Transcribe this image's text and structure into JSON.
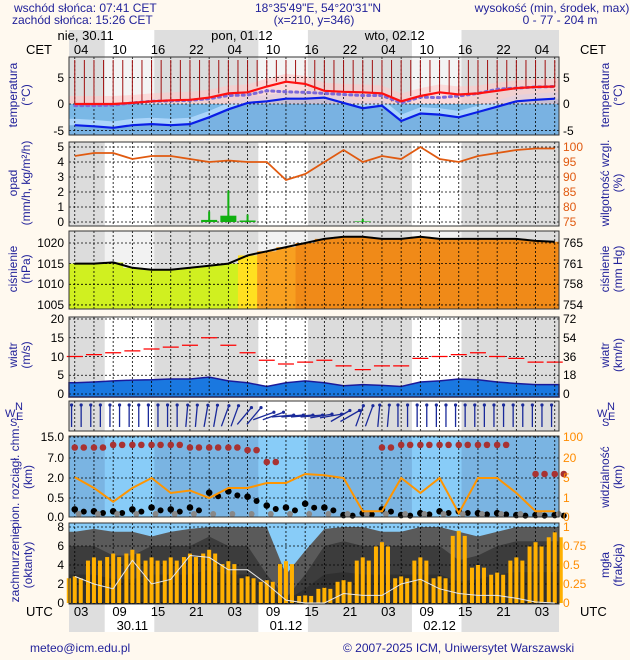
{
  "header": {
    "sunrise": "wschód słońca: 07:41 CET",
    "sunset": "zachód słońca: 15:26 CET",
    "coords": "18°35'49\"E, 54°20'31\"N",
    "grid": "(x=210,  y=346)",
    "elevation_label": "wysokość (min, środek, max)",
    "elevation_value": "0 - 77 - 204 m"
  },
  "top_axis": {
    "tz": "CET",
    "days": [
      "nie, 30.11",
      "pon, 01.12",
      "wto, 02.12"
    ],
    "hours": [
      "04",
      "10",
      "16",
      "22",
      "04",
      "10",
      "16",
      "22",
      "04",
      "10",
      "16",
      "22",
      "04"
    ]
  },
  "bottom_axis": {
    "tz": "UTC",
    "hours": [
      "03",
      "09",
      "15",
      "21",
      "03",
      "09",
      "15",
      "21",
      "03",
      "09",
      "15",
      "21",
      "03"
    ],
    "dates": [
      "30.11",
      "01.12",
      "02.12"
    ]
  },
  "footer": {
    "email": "meteo@icm.edu.pl",
    "copyright": "© 2007-2025 ICM, Uniwersytet Warszawski"
  },
  "colors": {
    "text": "#22229a",
    "temp": "#ff1010",
    "dew": "#0a1ee6",
    "humidity": "#e05a10",
    "precip": "#10b010",
    "gust": "#ff0000",
    "wind": "#1a78e0",
    "visibility": "#ff9500",
    "fog": "#ffb000",
    "night": "#dedede",
    "day": "#ffffff"
  },
  "chart_data": [
    {
      "type": "line",
      "id": "temperature",
      "title_left": [
        "temperatura",
        "(°C)"
      ],
      "title_right": [
        "temperatura",
        "(°C)"
      ],
      "x_hours_cet": [
        3,
        6,
        9,
        12,
        15,
        18,
        21,
        24,
        27,
        30,
        33,
        36,
        39,
        42,
        45,
        48,
        51,
        54,
        57,
        60,
        63,
        66,
        69,
        72,
        75,
        78
      ],
      "yticks_left": [
        "5",
        "0",
        "-5"
      ],
      "yticks_right": [
        "5",
        "0",
        "-5"
      ],
      "ylim": [
        -5.7,
        8.7
      ],
      "series": [
        {
          "name": "temperature",
          "values": [
            0,
            0,
            0,
            0.2,
            0.5,
            0.7,
            0.8,
            1.2,
            2,
            2.2,
            3.3,
            4.2,
            3.8,
            2.5,
            2.3,
            2.2,
            2,
            0.5,
            1.5,
            2.2,
            1.8,
            2,
            2.5,
            3,
            3.2,
            3.3
          ]
        },
        {
          "name": "perceived",
          "values": [
            -0.3,
            -0.3,
            -0.2,
            0.2,
            0.5,
            0.6,
            0.7,
            1,
            1.6,
            1.7,
            2.5,
            2.3,
            2.2,
            2,
            1.8,
            1.6,
            1.6,
            0.2,
            1.3,
            1.2,
            1.5,
            2,
            2.8,
            3,
            3.2,
            3.3
          ]
        },
        {
          "name": "dew_point",
          "values": [
            -4,
            -4.2,
            -4.5,
            -4,
            -3.8,
            -4,
            -3.8,
            -2.5,
            -1,
            0.2,
            0.5,
            1,
            1,
            1.2,
            0.2,
            -0.8,
            -0.3,
            -3.2,
            -1.8,
            -2,
            -2.5,
            -1.5,
            -0.5,
            0.5,
            0.8,
            1
          ]
        }
      ]
    },
    {
      "type": "bar+line",
      "id": "precip_humidity",
      "title_left": [
        "opad",
        "(mm/h, kg/m²/h)"
      ],
      "title_right": [
        "wilgotność wzgl.",
        "(%)"
      ],
      "yticks_left": [
        "5",
        "4",
        "3",
        "2",
        "1",
        "0"
      ],
      "yticks_right": [
        "100",
        "95",
        "90",
        "85",
        "80",
        "75"
      ],
      "ylim_left": [
        0,
        5
      ],
      "ylim_right": [
        75,
        100
      ],
      "series": [
        {
          "name": "precipitation",
          "values": [
            0,
            0,
            0,
            0,
            0,
            0,
            0,
            0.7,
            2.1,
            0.5,
            0,
            0,
            0,
            0,
            0,
            0.2,
            0,
            0,
            0,
            0,
            0,
            0,
            0,
            0,
            0,
            0
          ]
        },
        {
          "name": "humidity",
          "values": [
            97,
            98,
            98,
            96,
            97,
            97,
            96,
            95,
            95.5,
            95,
            95,
            89,
            91,
            95,
            99,
            95,
            97,
            96,
            100,
            96,
            95,
            97,
            98,
            99,
            99.5,
            99.5
          ]
        }
      ]
    },
    {
      "type": "area",
      "id": "pressure",
      "title_left": [
        "ciśnienie",
        "(hPa)"
      ],
      "title_right": [
        "ciśnienie",
        "(mm Hg)"
      ],
      "yticks_left": [
        "1020",
        "1015",
        "1010",
        "1005"
      ],
      "yticks_right": [
        "765",
        "761",
        "758",
        "754"
      ],
      "ylim": [
        1004,
        1023
      ],
      "series": [
        {
          "name": "pressure",
          "values": [
            1015,
            1015,
            1015.3,
            1014,
            1013.5,
            1013.5,
            1014,
            1014.5,
            1015,
            1017,
            1018,
            1019,
            1020,
            1021,
            1021.5,
            1021.5,
            1021,
            1021,
            1021.5,
            1021,
            1021,
            1021,
            1021,
            1021,
            1020.5,
            1020.3
          ]
        }
      ]
    },
    {
      "type": "area+line",
      "id": "wind",
      "title_left": [
        "wiatr",
        "(m/s)"
      ],
      "title_right": [
        "wiatr",
        "(km/h)"
      ],
      "yticks_left": [
        "20",
        "15",
        "10",
        "5",
        "0"
      ],
      "yticks_right": [
        "72",
        "54",
        "36",
        "18",
        "0"
      ],
      "ylim": [
        0,
        20
      ],
      "series": [
        {
          "name": "gusts",
          "values": [
            10,
            10.5,
            11,
            11.5,
            12,
            12.5,
            13,
            15,
            13,
            11,
            9,
            8,
            8.5,
            9,
            7.5,
            6.5,
            7.5,
            7.5,
            9.5,
            10,
            10.5,
            11,
            10,
            9.5,
            8.5,
            8.5
          ]
        },
        {
          "name": "speed",
          "values": [
            3,
            3.2,
            3.5,
            3.7,
            3.8,
            4,
            4,
            4.5,
            3.5,
            3,
            2,
            3,
            3.5,
            3,
            2.2,
            2.5,
            2.3,
            2,
            3.2,
            3.5,
            4,
            3.8,
            3.2,
            2.8,
            2.5,
            2.5
          ]
        }
      ]
    },
    {
      "type": "arrows",
      "id": "wind_direction",
      "compass": [
        "N",
        "W",
        "E",
        "S"
      ],
      "series": [
        {
          "name": "arrow_heading_deg",
          "values": [
            0,
            0,
            0,
            0,
            0,
            0,
            5,
            10,
            20,
            40,
            70,
            85,
            85,
            80,
            60,
            20,
            5,
            0,
            0,
            0,
            0,
            0,
            0,
            0,
            0,
            0
          ]
        }
      ]
    },
    {
      "type": "scatter+line",
      "id": "cloudbase_visibility",
      "title_left": [
        "pion. rozciągł. chm.",
        "(km)"
      ],
      "title_right": [
        "widzialność",
        "(km)"
      ],
      "yticks_left": [
        "15.0",
        "7.0",
        "2.0",
        "0.5",
        "0.0"
      ],
      "yticks_right": [
        "100",
        "20",
        "5",
        "1",
        "0"
      ],
      "series": [
        {
          "name": "cloud_top_high",
          "values": [
            11,
            11,
            12,
            12,
            12,
            12,
            11,
            11,
            11,
            10,
            6,
            null,
            null,
            null,
            null,
            null,
            11,
            12,
            12,
            12,
            12,
            12,
            12,
            null,
            3,
            3
          ]
        },
        {
          "name": "cloud_low",
          "values": [
            0.2,
            0.15,
            0.15,
            0.2,
            0.25,
            0.2,
            0.25,
            0.9,
            1.0,
            0.6,
            0.3,
            0.25,
            0.35,
            0.25,
            0.05,
            0.1,
            0.2,
            0.05,
            0.1,
            0.15,
            0.15,
            0.1,
            0.1,
            0.05,
            0.05,
            0.05
          ]
        },
        {
          "name": "visibility",
          "values": [
            5.5,
            3,
            0.8,
            3,
            5,
            2,
            2.5,
            1,
            3,
            3,
            4,
            4,
            8,
            7,
            5,
            0.3,
            0.3,
            5,
            2,
            5,
            0.2,
            5,
            5,
            2,
            0.3,
            0.3
          ]
        }
      ]
    },
    {
      "type": "area+bar",
      "id": "clouds_fog",
      "title_left": [
        "zachmurzenie",
        "(oktanty)"
      ],
      "title_right": [
        "mgła",
        "(frakcja)"
      ],
      "yticks_left": [
        "8",
        "6",
        "4",
        "2",
        "0"
      ],
      "yticks_right": [
        "1",
        "0.75",
        "0.5",
        "0.25",
        "0"
      ],
      "ylim_left": [
        0,
        8
      ],
      "ylim_right": [
        0,
        1
      ],
      "series": [
        {
          "name": "cloud_total",
          "values": [
            7.5,
            7.8,
            7.5,
            7.5,
            7,
            7.5,
            7.8,
            8,
            8,
            8,
            8,
            3,
            5.5,
            7.8,
            8,
            8,
            7.5,
            7.5,
            8,
            8,
            7.5,
            7,
            7.5,
            8,
            8,
            8
          ]
        },
        {
          "name": "cloud_mid",
          "values": [
            6,
            6,
            5,
            5,
            6,
            6,
            6,
            7,
            6,
            6,
            3,
            0.5,
            3,
            6,
            6.5,
            6,
            6,
            6,
            6,
            6,
            4.5,
            5,
            6,
            6.5,
            6.5,
            6.5
          ]
        },
        {
          "name": "fog_fraction",
          "values": [
            0.35,
            0.6,
            0.65,
            0.7,
            0.6,
            0.6,
            0.65,
            0.7,
            0.55,
            0.35,
            0.3,
            0.55,
            0.1,
            0.2,
            0.3,
            0.6,
            0.8,
            0.35,
            0.6,
            0.35,
            0.95,
            0.5,
            0.4,
            0.6,
            0.8,
            0.93
          ]
        },
        {
          "name": "low_cloud",
          "values": [
            2.8,
            2,
            1.5,
            4.5,
            2,
            2.5,
            5,
            4.8,
            3.5,
            3.5,
            2,
            0.3,
            0,
            0,
            1,
            0.8,
            0.8,
            2,
            2.5,
            1.5,
            1,
            0.8,
            0.8,
            0.5,
            0.1,
            0
          ]
        }
      ]
    }
  ]
}
